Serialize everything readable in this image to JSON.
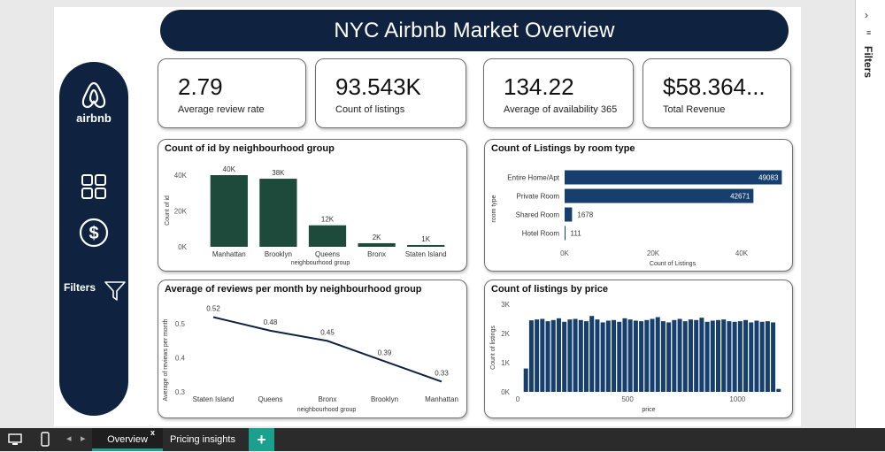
{
  "dashboard": {
    "title": "NYC Airbnb Market Overview",
    "brand_name": "airbnb",
    "filters_label": "Filters",
    "colors": {
      "navy": "#0f2341",
      "bar_green": "#1e4a3c",
      "bar_blue": "#173f6e",
      "accent": "#1aa08d"
    }
  },
  "kpis": [
    {
      "value": "2.79",
      "label": "Average review rate"
    },
    {
      "value": "93.543K",
      "label": "Count of listings"
    },
    {
      "value": "134.22",
      "label": "Average of availability 365"
    },
    {
      "value": "$58.364...",
      "label": "Total Revenue"
    }
  ],
  "chart_data": [
    {
      "type": "bar",
      "title": "Count of id by neighbourhood group",
      "categories": [
        "Manhattan",
        "Brooklyn",
        "Queens",
        "Bronx",
        "Staten Island"
      ],
      "values": [
        40000,
        38000,
        12000,
        2000,
        1000
      ],
      "data_labels": [
        "40K",
        "38K",
        "12K",
        "2K",
        "1K"
      ],
      "xlabel": "neighbourhood group",
      "ylabel": "Count of id",
      "ylim": [
        0,
        40000
      ],
      "yticks": [
        "0K",
        "20K",
        "40K"
      ]
    },
    {
      "type": "bar",
      "orientation": "horizontal",
      "title": "Count of Listings by room type",
      "categories": [
        "Entire Home/Apt",
        "Private Room",
        "Shared Room",
        "Hotel Room"
      ],
      "values": [
        49083,
        42671,
        1678,
        111
      ],
      "xlabel": "Count of Listings",
      "ylabel": "room type",
      "xlim": [
        0,
        50000
      ],
      "xticks": [
        "0K",
        "20K",
        "40K"
      ]
    },
    {
      "type": "line",
      "title": "Average of reviews per month by neighbourhood group",
      "categories": [
        "Staten Island",
        "Queens",
        "Bronx",
        "Brooklyn",
        "Manhattan"
      ],
      "values": [
        0.52,
        0.48,
        0.45,
        0.39,
        0.33
      ],
      "xlabel": "neighbourhood group",
      "ylabel": "Average of reviews per month",
      "ylim": [
        0.3,
        0.55
      ],
      "yticks": [
        "0.3",
        "0.4",
        "0.5"
      ]
    },
    {
      "type": "bar",
      "title": "Count of listings by price",
      "x_start": 50,
      "bin_width": 25,
      "values": [
        800,
        2450,
        2480,
        2500,
        2420,
        2460,
        2520,
        2400,
        2480,
        2500,
        2460,
        2420,
        2600,
        2480,
        2380,
        2440,
        2460,
        2400,
        2520,
        2480,
        2440,
        2420,
        2460,
        2500,
        2560,
        2420,
        2380,
        2460,
        2500,
        2420,
        2480,
        2460,
        2540,
        2400,
        2440,
        2460,
        2480,
        2420,
        2400,
        2420,
        2460,
        2380,
        2440,
        2400,
        2420,
        2380,
        100
      ],
      "xlabel": "price",
      "ylabel": "Count of listings",
      "xlim": [
        0,
        1200
      ],
      "ylim": [
        0,
        3000
      ],
      "xticks": [
        "0",
        "500",
        "1000"
      ],
      "yticks": [
        "0K",
        "1K",
        "2K",
        "3K"
      ]
    }
  ],
  "footer": {
    "tabs": [
      "Overview",
      "Pricing insights"
    ],
    "close_glyph": "x",
    "add_glyph": "+"
  }
}
